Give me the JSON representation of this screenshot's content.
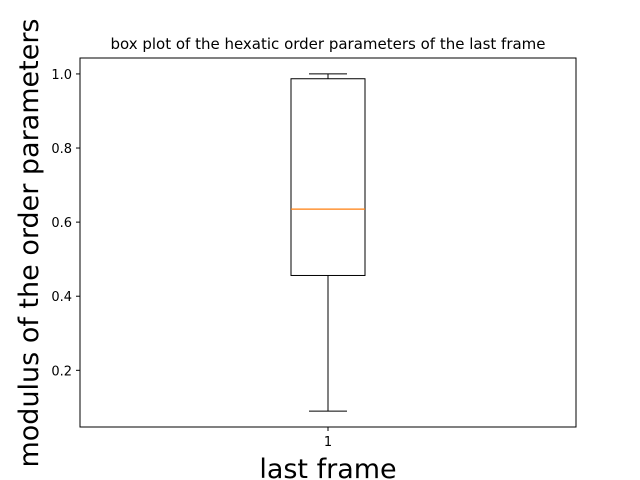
{
  "chart_data": {
    "type": "box",
    "title": "box plot of the hexatic order parameters of the last frame",
    "xlabel": "last frame",
    "ylabel": "modulus of the order parameters",
    "categories": [
      "1"
    ],
    "x_ticks": [
      "1"
    ],
    "y_ticks": [
      "0.2",
      "0.4",
      "0.6",
      "0.8",
      "1.0"
    ],
    "ylim": [
      0.047,
      1.043
    ],
    "box": {
      "whisker_low": 0.09,
      "q1": 0.456,
      "median": 0.635,
      "q3": 0.987,
      "whisker_high": 1.0
    },
    "grid": false,
    "colors": {
      "box": "#000000",
      "median": "#ff7f0e",
      "frame": "#000000"
    }
  }
}
